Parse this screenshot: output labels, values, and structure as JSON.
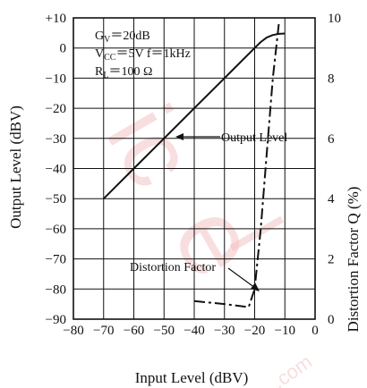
{
  "chart_data": {
    "type": "line",
    "xlabel": "Input Level (dBV)",
    "ylabel": "Output Level (dBV)",
    "ylabel_right": "Distortion Factor Q (%)",
    "xlim": [
      -80,
      0
    ],
    "ylim": [
      -90,
      10
    ],
    "ylim_right": [
      0,
      10
    ],
    "x_ticks": [
      "−80",
      "−70",
      "−60",
      "−50",
      "−40",
      "−30",
      "−20",
      "−10",
      "0"
    ],
    "y_ticks": [
      "+10",
      "0",
      "−10",
      "−20",
      "−30",
      "−40",
      "−50",
      "−60",
      "−70",
      "−80",
      "−90"
    ],
    "y_right_ticks": [
      "0",
      "2",
      "4",
      "6",
      "8",
      "10"
    ],
    "grid": true,
    "conditions": {
      "gv_main": "G",
      "gv_sub": "V",
      "gv_rest": "＝20dB",
      "vcc_main": "V",
      "vcc_sub": "CC",
      "vcc_rest": "＝5V  f＝1kHz",
      "rl_main": "R",
      "rl_sub": "L",
      "rl_rest": "＝100 Ω"
    },
    "annotations": {
      "output_level": "Output Level",
      "distortion_factor": "Distortion Factor"
    },
    "series": [
      {
        "name": "Output Level",
        "axis": "left",
        "style": "solid",
        "x": [
          -70,
          -60,
          -50,
          -40,
          -30,
          -20,
          -18,
          -16,
          -14,
          -12,
          -10
        ],
        "y": [
          -50,
          -40,
          -30,
          -20,
          -10,
          0,
          2,
          3.5,
          4.3,
          4.7,
          4.8
        ]
      },
      {
        "name": "Distortion Factor",
        "axis": "right",
        "style": "dashdot",
        "x": [
          -40,
          -30,
          -22,
          -20,
          -18,
          -16,
          -14,
          -12
        ],
        "y": [
          0.6,
          0.5,
          0.4,
          1.0,
          3.0,
          5.5,
          8.0,
          9.8
        ]
      }
    ]
  }
}
